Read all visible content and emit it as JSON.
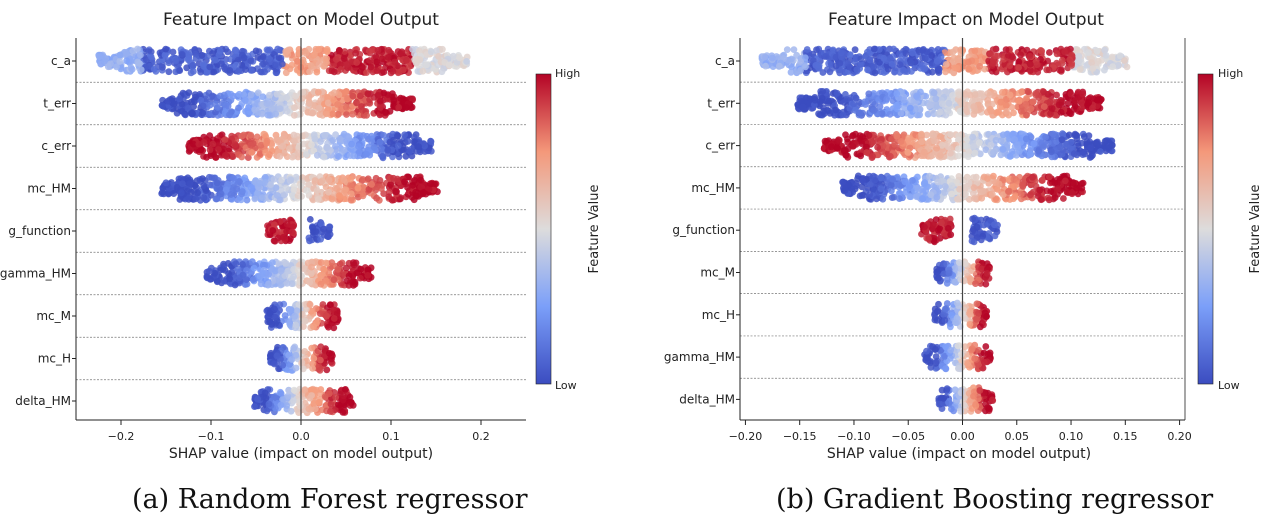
{
  "chart_data": [
    {
      "type": "scatter",
      "subtype": "shap-beeswarm",
      "title": "Feature Impact on Model Output",
      "xlabel": "SHAP value (impact on model output)",
      "xlim": [
        -0.25,
        0.25
      ],
      "xticks": [
        -0.2,
        -0.1,
        0.0,
        0.1,
        0.2
      ],
      "tick_labels": [
        "−0.2",
        "−0.1",
        "0.0",
        "0.1",
        "0.2"
      ],
      "colorbar": {
        "label": "Feature Value",
        "high": "High",
        "low": "Low",
        "colors": [
          "#3b4cc0",
          "#b40426"
        ]
      },
      "caption": "(a) Random Forest regressor",
      "features": [
        {
          "name": "c_a",
          "min": -0.225,
          "max": 0.185,
          "split": 0.0,
          "mode": "mixed"
        },
        {
          "name": "t_err",
          "min": -0.155,
          "max": 0.125,
          "split": -0.01,
          "mode": "highright"
        },
        {
          "name": "c_err",
          "min": -0.125,
          "max": 0.145,
          "split": 0.01,
          "mode": "highleft"
        },
        {
          "name": "mc_HM",
          "min": -0.155,
          "max": 0.152,
          "split": -0.005,
          "mode": "highright"
        },
        {
          "name": "g_function",
          "min": -0.038,
          "max": 0.033,
          "split": 0.0,
          "mode": "twoblob",
          "gap": [
            -0.008,
            0.008
          ]
        },
        {
          "name": "gamma_HM",
          "min": -0.105,
          "max": 0.078,
          "split": -0.005,
          "mode": "highright"
        },
        {
          "name": "mc_M",
          "min": -0.038,
          "max": 0.042,
          "split": 0.0,
          "mode": "highright"
        },
        {
          "name": "mc_H",
          "min": -0.035,
          "max": 0.035,
          "split": 0.0,
          "mode": "highright"
        },
        {
          "name": "delta_HM",
          "min": -0.052,
          "max": 0.058,
          "split": -0.005,
          "mode": "highright"
        }
      ]
    },
    {
      "type": "scatter",
      "subtype": "shap-beeswarm",
      "title": "Feature Impact on Model Output",
      "xlabel": "SHAP value (impact on model output)",
      "xlim": [
        -0.205,
        0.205
      ],
      "xticks": [
        -0.2,
        -0.15,
        -0.1,
        -0.05,
        0.0,
        0.05,
        0.1,
        0.15,
        0.2
      ],
      "tick_labels": [
        "−0.20",
        "−0.15",
        "−0.10",
        "−0.05",
        "0.00",
        "0.05",
        "0.10",
        "0.15",
        "0.20"
      ],
      "colorbar": {
        "label": "Feature Value",
        "high": "High",
        "low": "Low",
        "colors": [
          "#3b4cc0",
          "#b40426"
        ]
      },
      "caption": "(b) Gradient Boosting regressor",
      "features": [
        {
          "name": "c_a",
          "min": -0.185,
          "max": 0.152,
          "split": 0.0,
          "mode": "mixed"
        },
        {
          "name": "t_err",
          "min": -0.152,
          "max": 0.128,
          "split": -0.005,
          "mode": "highright"
        },
        {
          "name": "c_err",
          "min": -0.128,
          "max": 0.138,
          "split": 0.005,
          "mode": "highleft"
        },
        {
          "name": "mc_HM",
          "min": -0.112,
          "max": 0.112,
          "split": -0.005,
          "mode": "highright"
        },
        {
          "name": "g_function",
          "min": -0.038,
          "max": 0.033,
          "split": 0.0,
          "mode": "twoblob",
          "gap": [
            -0.01,
            0.008
          ]
        },
        {
          "name": "mc_M",
          "min": -0.025,
          "max": 0.026,
          "split": 0.0,
          "mode": "highright"
        },
        {
          "name": "mc_H",
          "min": -0.026,
          "max": 0.024,
          "split": 0.0,
          "mode": "highright"
        },
        {
          "name": "gamma_HM",
          "min": -0.035,
          "max": 0.026,
          "split": -0.002,
          "mode": "highright"
        },
        {
          "name": "delta_HM",
          "min": -0.022,
          "max": 0.028,
          "split": 0.0,
          "mode": "highright"
        }
      ]
    }
  ]
}
